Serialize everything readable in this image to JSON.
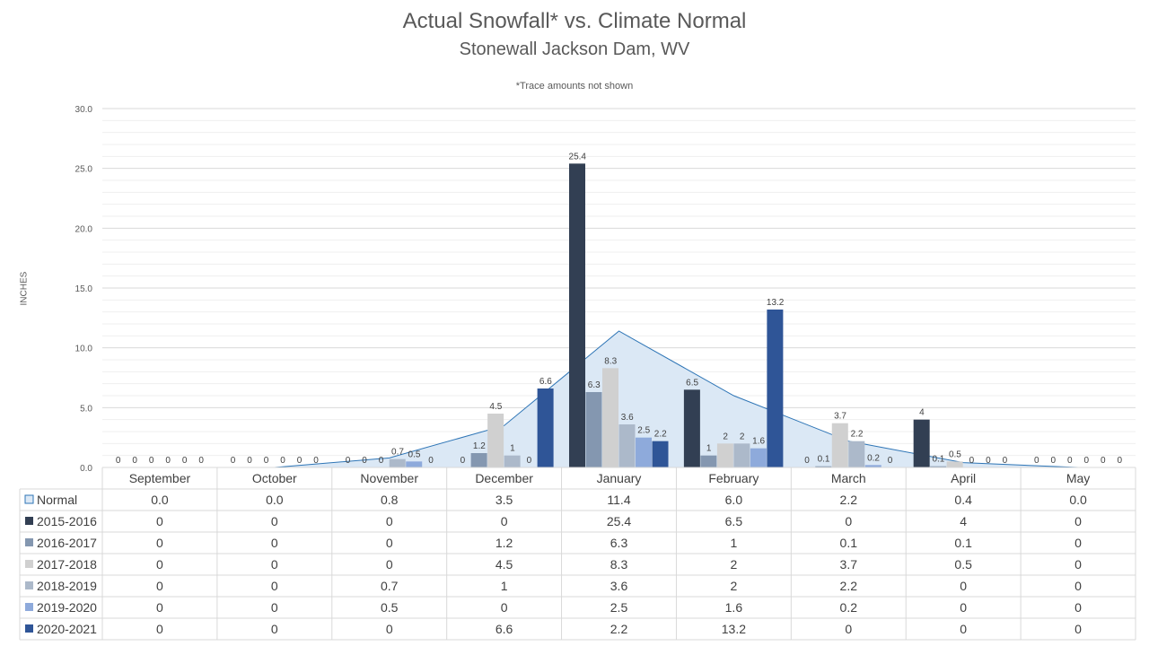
{
  "chart_data": {
    "type": "bar",
    "title": "Actual Snowfall* vs. Climate Normal",
    "subtitle": "Stonewall Jackson Dam, WV",
    "note": "*Trace amounts not shown",
    "ylabel": "INCHES",
    "xlabel": "",
    "ylim": [
      0,
      30
    ],
    "yticks": [
      "0.0",
      "5.0",
      "10.0",
      "15.0",
      "20.0",
      "25.0",
      "30.0"
    ],
    "grid": true,
    "legend": "data-table",
    "categories": [
      "September",
      "October",
      "November",
      "December",
      "January",
      "February",
      "March",
      "April",
      "May"
    ],
    "normal": {
      "name": "Normal",
      "type": "area",
      "color": "#dbe8f5",
      "line_color": "#2e75b6",
      "values": [
        0.0,
        0.0,
        0.8,
        3.5,
        11.4,
        6.0,
        2.2,
        0.4,
        0.0
      ],
      "labels": [
        "0.0",
        "0.0",
        "0.8",
        "3.5",
        "11.4",
        "6.0",
        "2.2",
        "0.4",
        "0.0"
      ]
    },
    "series": [
      {
        "name": "2015-2016",
        "color": "#323f53",
        "values": [
          0,
          0,
          0,
          0,
          25.4,
          6.5,
          0,
          4,
          0
        ],
        "labels": [
          "0",
          "0",
          "0",
          "0",
          "25.4",
          "6.5",
          "0",
          "4",
          "0"
        ]
      },
      {
        "name": "2016-2017",
        "color": "#8497b0",
        "values": [
          0,
          0,
          0,
          1.2,
          6.3,
          1,
          0.1,
          0.1,
          0
        ],
        "labels": [
          "0",
          "0",
          "0",
          "1.2",
          "6.3",
          "1",
          "0.1",
          "0.1",
          "0"
        ]
      },
      {
        "name": "2017-2018",
        "color": "#d0d0d0",
        "values": [
          0,
          0,
          0,
          4.5,
          8.3,
          2,
          3.7,
          0.5,
          0
        ],
        "labels": [
          "0",
          "0",
          "0",
          "4.5",
          "8.3",
          "2",
          "3.7",
          "0.5",
          "0"
        ]
      },
      {
        "name": "2018-2019",
        "color": "#acb9ca",
        "values": [
          0,
          0,
          0.7,
          1,
          3.6,
          2,
          2.2,
          0,
          0
        ],
        "labels": [
          "0",
          "0",
          "0.7",
          "1",
          "3.6",
          "2",
          "2.2",
          "0",
          "0"
        ]
      },
      {
        "name": "2019-2020",
        "color": "#8eaadb",
        "values": [
          0,
          0,
          0.5,
          0,
          2.5,
          1.6,
          0.2,
          0,
          0
        ],
        "labels": [
          "0",
          "0",
          "0.5",
          "0",
          "2.5",
          "1.6",
          "0.2",
          "0",
          "0"
        ]
      },
      {
        "name": "2020-2021",
        "color": "#2f5597",
        "values": [
          0,
          0,
          0,
          6.6,
          2.2,
          13.2,
          0,
          0,
          0
        ],
        "labels": [
          "0",
          "0",
          "0",
          "6.6",
          "2.2",
          "13.2",
          "0",
          "0",
          "0"
        ]
      }
    ]
  }
}
